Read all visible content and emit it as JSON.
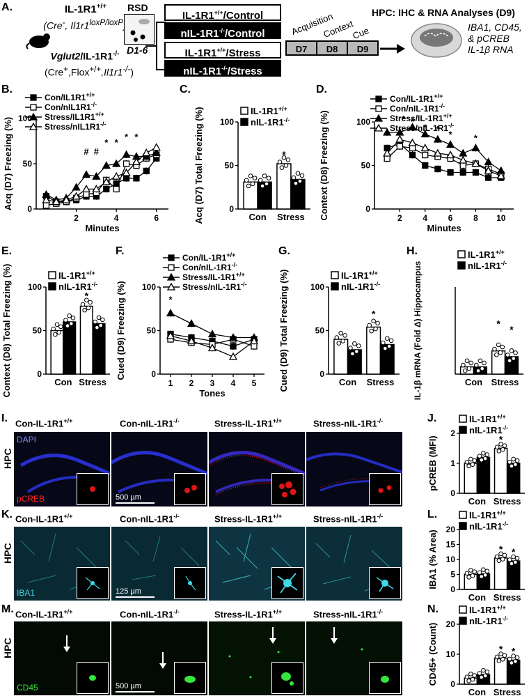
{
  "panel_letters": {
    "a": "A.",
    "b": "B.",
    "c": "C.",
    "d": "D.",
    "e": "E.",
    "f": "F.",
    "g": "G.",
    "h": "H.",
    "i": "I.",
    "j": "J.",
    "k": "K.",
    "l": "L.",
    "m": "M.",
    "n": "N."
  },
  "design": {
    "mouse1_line1": "IL-1R1",
    "mouse1_sup1": "+/+",
    "mouse1_line2a": "(Cre",
    "mouse1_line2b": "-",
    "mouse1_line2c": ", Il1r1",
    "mouse1_line2d": "loxP/loxP",
    "mouse1_line2e": ")",
    "mouse2_line1a": "Vglut2",
    "mouse2_line1b": "/IL-1R1",
    "mouse2_sup": "-/-",
    "mouse2_line2a": "(Cre",
    "mouse2_line2b": "+",
    "mouse2_line2c": ",Flox",
    "mouse2_line2d": "+/+",
    "mouse2_line2e": ",Il1r1",
    "mouse2_line2f": "-/-",
    "mouse2_line2g": ")",
    "rsd_label": "RSD",
    "rsd_days": "D1-6",
    "groups": [
      {
        "base": "IL-1R1",
        "sup": "+/+",
        "rest": "/Control",
        "dark": false
      },
      {
        "base": "nIL-1R1",
        "sup": "-/-",
        "rest": "/Control",
        "dark": true
      },
      {
        "base": "IL-1R1",
        "sup": "+/+",
        "rest": "/Stress",
        "dark": false
      },
      {
        "base": "nIL-1R1",
        "sup": "-/-",
        "rest": "/Stress",
        "dark": true
      }
    ],
    "phases": [
      "Acquisition",
      "Context",
      "Cue"
    ],
    "days": [
      "D7",
      "D8",
      "D9"
    ],
    "hpc_title": "HPC: IHC & RNA Analyses (D9)",
    "hpc_list": [
      "IBA1, CD45,",
      "& pCREB",
      "IL-1β RNA"
    ]
  },
  "legends": {
    "geno_wt_base": "IL-1R1",
    "geno_wt_sup": "+/+",
    "geno_ko_base": "nIL-1R1",
    "geno_ko_sup": "-/-"
  },
  "colors": {
    "ko_fill": "#000000",
    "wt_fill": "#ffffff",
    "dapi": "#1a24d8",
    "pcreb": "#e01515",
    "iba1": "#3fd8e6",
    "cd45": "#35e63a",
    "day_box": "#b8b8b8"
  },
  "chart_data": [
    {
      "id": "B",
      "type": "line",
      "ylabel": "Acq (D7) Freezing (%)",
      "xlabel": "Minutes",
      "xlim": [
        0,
        6.6
      ],
      "ylim": [
        0,
        100
      ],
      "xticks": [
        2,
        4,
        6
      ],
      "yticks": [
        0,
        50,
        100
      ],
      "x": [
        0.5,
        1,
        1.5,
        2,
        2.5,
        3,
        3.5,
        4,
        4.5,
        5,
        5.5,
        6
      ],
      "series": [
        {
          "name": "Con/IL1R1",
          "sup": "+/+",
          "marker": "square",
          "filled": true,
          "values": [
            14,
            8,
            8,
            10,
            14,
            14,
            22,
            28,
            34,
            34,
            42,
            56
          ]
        },
        {
          "name": "Con/nIL1R1",
          "sup": "-/-",
          "marker": "square",
          "filled": false,
          "values": [
            4,
            6,
            8,
            12,
            16,
            18,
            32,
            22,
            50,
            48,
            56,
            60
          ]
        },
        {
          "name": "Stress/IL1R1",
          "sup": "+/+",
          "marker": "triangle",
          "filled": true,
          "values": [
            16,
            10,
            12,
            24,
            38,
            36,
            48,
            50,
            60,
            58,
            58,
            62
          ]
        },
        {
          "name": "Stress/nIL1R1",
          "sup": "-/-",
          "marker": "triangle",
          "filled": false,
          "values": [
            10,
            8,
            10,
            14,
            22,
            22,
            30,
            36,
            40,
            52,
            62,
            68
          ]
        }
      ],
      "annotations": [
        "#",
        "#",
        "*",
        "*",
        "*",
        "*"
      ]
    },
    {
      "id": "C",
      "type": "bar",
      "ylabel": "Acq (D7) Total Freezing (%)",
      "categories": [
        "Con",
        "Stress"
      ],
      "ylim": [
        0,
        100
      ],
      "yticks": [
        0,
        50,
        100
      ],
      "series": [
        {
          "name": "IL-1R1 +/+",
          "values": [
            31,
            52
          ]
        },
        {
          "name": "nIL-1R1 -/-",
          "values": [
            31,
            34
          ]
        }
      ],
      "annotations": [
        "*"
      ]
    },
    {
      "id": "D",
      "type": "line",
      "ylabel": "Context (D8) Freezing (%)",
      "xlabel": "Minutes",
      "xlim": [
        0,
        11
      ],
      "ylim": [
        0,
        100
      ],
      "xticks": [
        2,
        4,
        6,
        8,
        10
      ],
      "yticks": [
        0,
        50,
        100
      ],
      "x": [
        1,
        2,
        3,
        4,
        5,
        6,
        7,
        8,
        9,
        10
      ],
      "series": [
        {
          "name": "Con/IL-1R1",
          "sup": "+/+",
          "marker": "square",
          "filled": true,
          "values": [
            70,
            75,
            62,
            50,
            46,
            42,
            42,
            42,
            36,
            36
          ]
        },
        {
          "name": "Con/nIL-1R1",
          "sup": "-/-",
          "marker": "square",
          "filled": false,
          "values": [
            58,
            72,
            70,
            62,
            60,
            58,
            50,
            52,
            46,
            40
          ]
        },
        {
          "name": "Stress/IL-1R1",
          "sup": "+/+",
          "marker": "triangle",
          "filled": true,
          "values": [
            88,
            88,
            94,
            86,
            80,
            74,
            64,
            70,
            54,
            44
          ]
        },
        {
          "name": "Stress/nIL-1R1",
          "sup": "-/-",
          "marker": "triangle",
          "filled": false,
          "values": [
            64,
            80,
            76,
            70,
            64,
            62,
            56,
            52,
            44,
            38
          ]
        }
      ],
      "annotations": [
        "*",
        "*",
        "*",
        "*",
        "*",
        "*"
      ]
    },
    {
      "id": "E",
      "type": "bar",
      "ylabel": "Context (D8) Total Freezing (%)",
      "categories": [
        "Con",
        "Stress"
      ],
      "ylim": [
        0,
        100
      ],
      "yticks": [
        0,
        50,
        100
      ],
      "series": [
        {
          "name": "IL-1R1 +/+",
          "values": [
            50,
            78
          ]
        },
        {
          "name": "nIL-1R1 -/-",
          "values": [
            60,
            58
          ]
        }
      ],
      "annotations": [
        "*"
      ]
    },
    {
      "id": "F",
      "type": "line",
      "ylabel": "Cued (D9) Freezing (%)",
      "xlabel": "Tones",
      "xlim": [
        0.5,
        5.5
      ],
      "ylim": [
        0,
        100
      ],
      "xticks": [
        1,
        2,
        3,
        4,
        5
      ],
      "yticks": [
        0,
        50,
        100
      ],
      "x": [
        1,
        2,
        3,
        4,
        5
      ],
      "series": [
        {
          "name": "Con/IL-1R1",
          "sup": "+/+",
          "marker": "square",
          "filled": true,
          "values": [
            46,
            42,
            38,
            32,
            40
          ]
        },
        {
          "name": "Con/nIL-1R1",
          "sup": "-/-",
          "marker": "square",
          "filled": false,
          "values": [
            40,
            36,
            34,
            40,
            32
          ]
        },
        {
          "name": "Stress/IL-1R1",
          "sup": "+/+",
          "marker": "triangle",
          "filled": true,
          "values": [
            70,
            58,
            46,
            42,
            42
          ]
        },
        {
          "name": "Stress/nIL-1R1",
          "sup": "-/-",
          "marker": "triangle",
          "filled": false,
          "values": [
            44,
            38,
            30,
            20,
            38
          ]
        }
      ],
      "annotations": [
        "*"
      ]
    },
    {
      "id": "G",
      "type": "bar",
      "ylabel": "Cued (D9) Total Freezing (%)",
      "categories": [
        "Con",
        "Stress"
      ],
      "ylim": [
        0,
        100
      ],
      "yticks": [
        0,
        50,
        100
      ],
      "series": [
        {
          "name": "IL-1R1 +/+",
          "values": [
            40,
            54
          ]
        },
        {
          "name": "nIL-1R1 -/-",
          "values": [
            28,
            34
          ]
        }
      ],
      "annotations": [
        "*"
      ]
    },
    {
      "id": "H",
      "type": "bar",
      "ylabel": "IL-1β mRNA (Fold Δ) Hippocampus",
      "categories": [
        "Con",
        "Stress"
      ],
      "ylim": [
        0,
        12
      ],
      "yticks": [],
      "series": [
        {
          "name": "IL-1R1 +/+",
          "values": [
            1,
            3.2
          ]
        },
        {
          "name": "nIL-1R1 -/-",
          "values": [
            1,
            2.4
          ]
        }
      ],
      "annotations": [
        "*",
        "*"
      ]
    },
    {
      "id": "J",
      "type": "bar",
      "ylabel": "pCREB (MFI)",
      "categories": [
        "Con",
        "Stress"
      ],
      "ylim": [
        0,
        2
      ],
      "yticks": [
        0,
        1,
        2
      ],
      "series": [
        {
          "name": "IL-1R1 +/+",
          "values": [
            1.0,
            1.5
          ]
        },
        {
          "name": "nIL-1R1 -/-",
          "values": [
            1.2,
            1.0
          ]
        }
      ],
      "annotations": [
        "*"
      ]
    },
    {
      "id": "L",
      "type": "bar",
      "ylabel": "IBA1 (% Area)",
      "categories": [
        "Con",
        "Stress"
      ],
      "ylim": [
        0,
        20
      ],
      "yticks": [
        0,
        5,
        10,
        15,
        20
      ],
      "series": [
        {
          "name": "IL-1R1 +/+",
          "values": [
            5,
            10.5
          ]
        },
        {
          "name": "nIL-1R1 -/-",
          "values": [
            5.2,
            9.5
          ]
        }
      ],
      "annotations": [
        "*",
        "*"
      ]
    },
    {
      "id": "N",
      "type": "bar",
      "ylabel": "CD45+ (Count)",
      "categories": [
        "Con",
        "Stress"
      ],
      "ylim": [
        0,
        20
      ],
      "yticks": [
        0,
        10,
        20
      ],
      "series": [
        {
          "name": "IL-1R1 +/+",
          "values": [
            2,
            8.7
          ]
        },
        {
          "name": "nIL-1R1 -/-",
          "values": [
            3.2,
            8
          ]
        }
      ],
      "annotations": [
        "*",
        "*"
      ]
    }
  ],
  "micrographs": {
    "column_titles": [
      {
        "base": "Con-IL-1R1",
        "sup": "+/+"
      },
      {
        "base": "Con-nIL-1R1",
        "sup": "-/-"
      },
      {
        "base": "Stress-IL-1R1",
        "sup": "+/+"
      },
      {
        "base": "Stress-nIL-1R1",
        "sup": "-/-"
      }
    ],
    "row_label": "HPC",
    "i_stain1": "DAPI",
    "i_stain2": "pCREB",
    "i_scale": "500 µm",
    "k_stain": "IBA1",
    "k_scale": "125 µm",
    "m_stain": "CD45",
    "m_scale": "500 µm"
  }
}
